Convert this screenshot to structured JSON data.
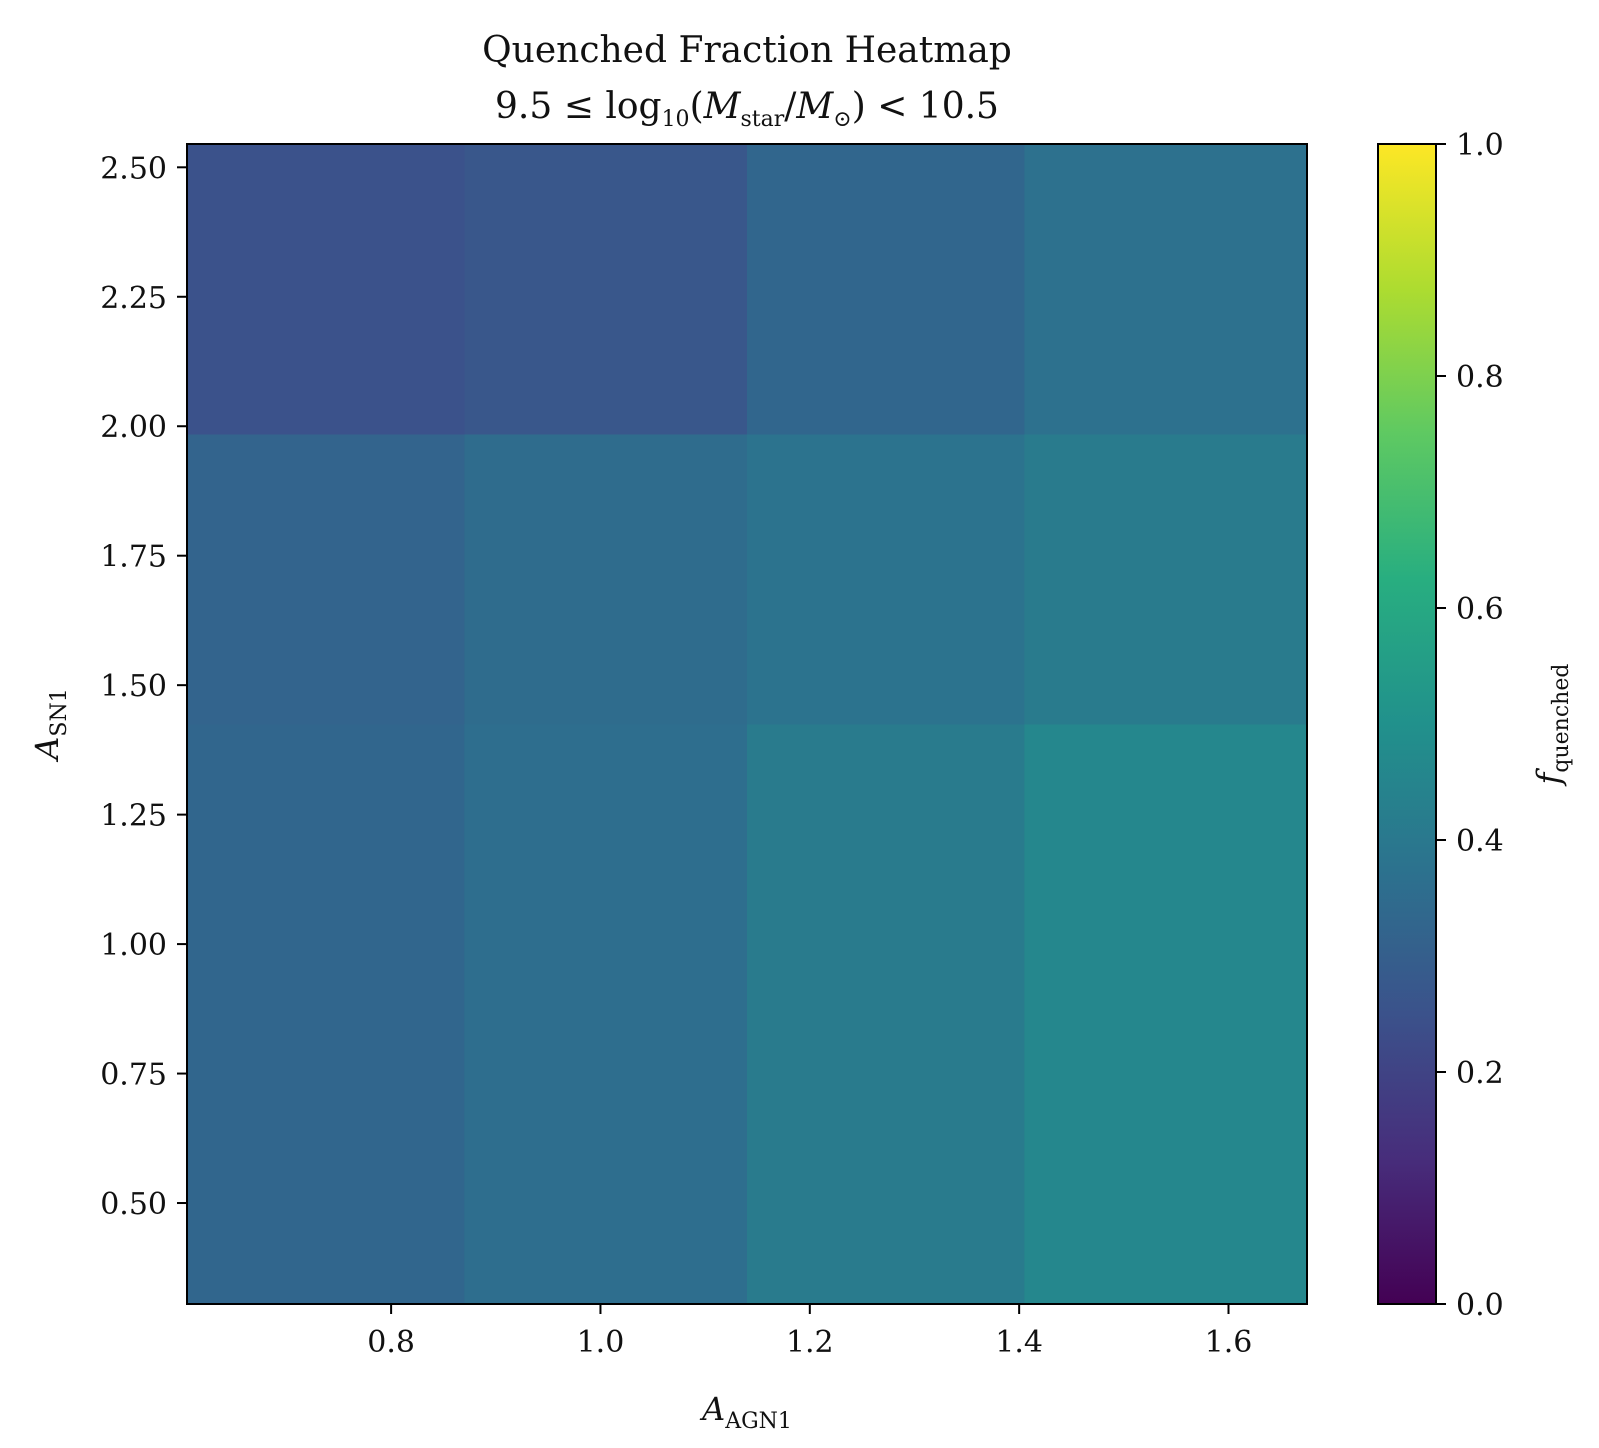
{
  "chart_data": {
    "type": "heatmap",
    "title": "Quenched Fraction Heatmap",
    "subtitle": "9.5 ≤ log10(Mstar/M⊙) < 10.5",
    "xlabel": "A_AGN1",
    "ylabel": "A_SN1",
    "colorbar_label": "f_quenched",
    "colormap": "viridis",
    "x_bin_centers": [
      0.74,
      1.005,
      1.27,
      1.535
    ],
    "x_bin_edges": [
      0.605,
      0.87,
      1.14,
      1.405,
      1.675
    ],
    "y_bin_edges": [
      0.305,
      1.425,
      1.985,
      2.545
    ],
    "xlim": [
      0.605,
      1.675
    ],
    "ylim": [
      0.305,
      2.545
    ],
    "clim": [
      0,
      1
    ],
    "x_ticks": [
      "0.8",
      "1.0",
      "1.2",
      "1.4",
      "1.6"
    ],
    "y_ticks": [
      "0.50",
      "0.75",
      "1.00",
      "1.25",
      "1.50",
      "1.75",
      "2.00",
      "2.25",
      "2.50"
    ],
    "colorbar_ticks": [
      "0.0",
      "0.2",
      "0.4",
      "0.6",
      "0.8",
      "1.0"
    ],
    "values": [
      [
        0.33,
        0.36,
        0.41,
        0.46
      ],
      [
        0.32,
        0.35,
        0.38,
        0.41
      ],
      [
        0.25,
        0.27,
        0.33,
        0.37
      ]
    ],
    "grid": false
  }
}
